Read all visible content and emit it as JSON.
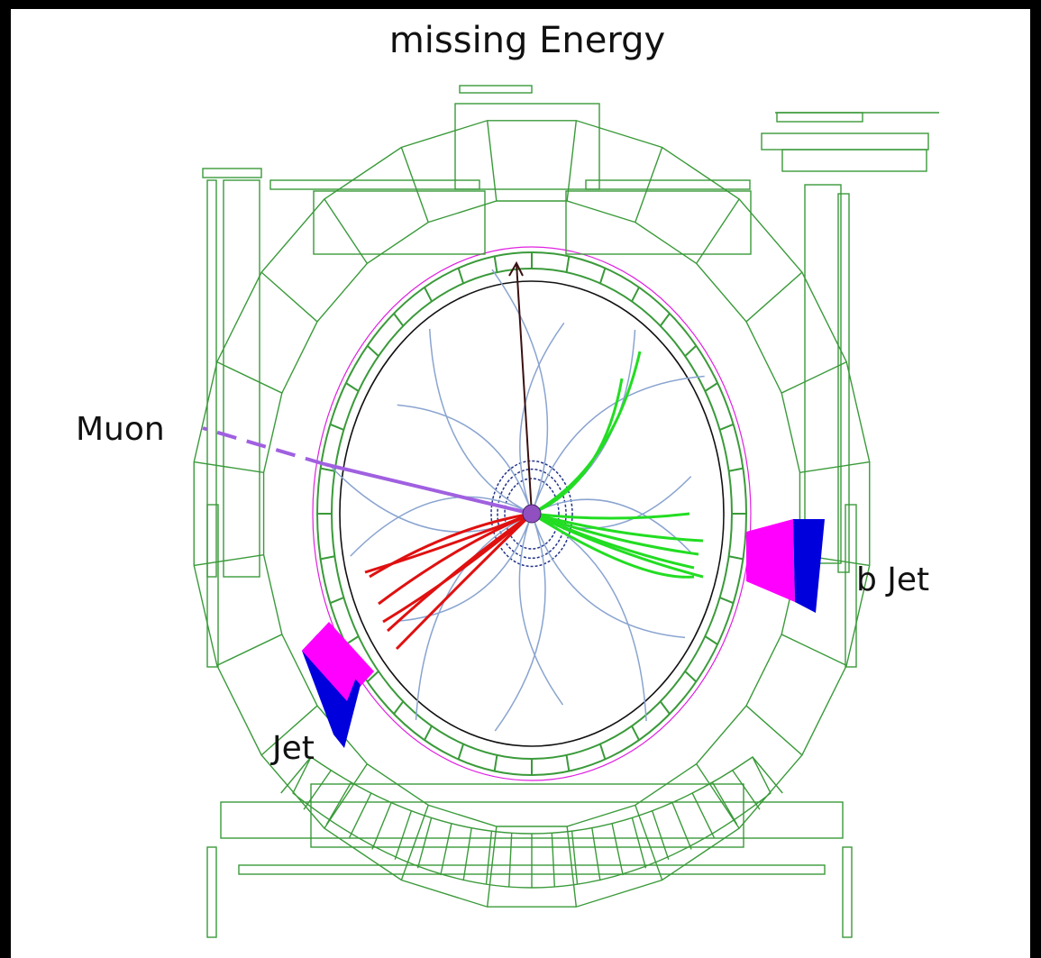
{
  "title": "missing Energy",
  "labels": {
    "muon": "Muon",
    "b_jet": "b Jet",
    "jet": "Jet"
  }
}
